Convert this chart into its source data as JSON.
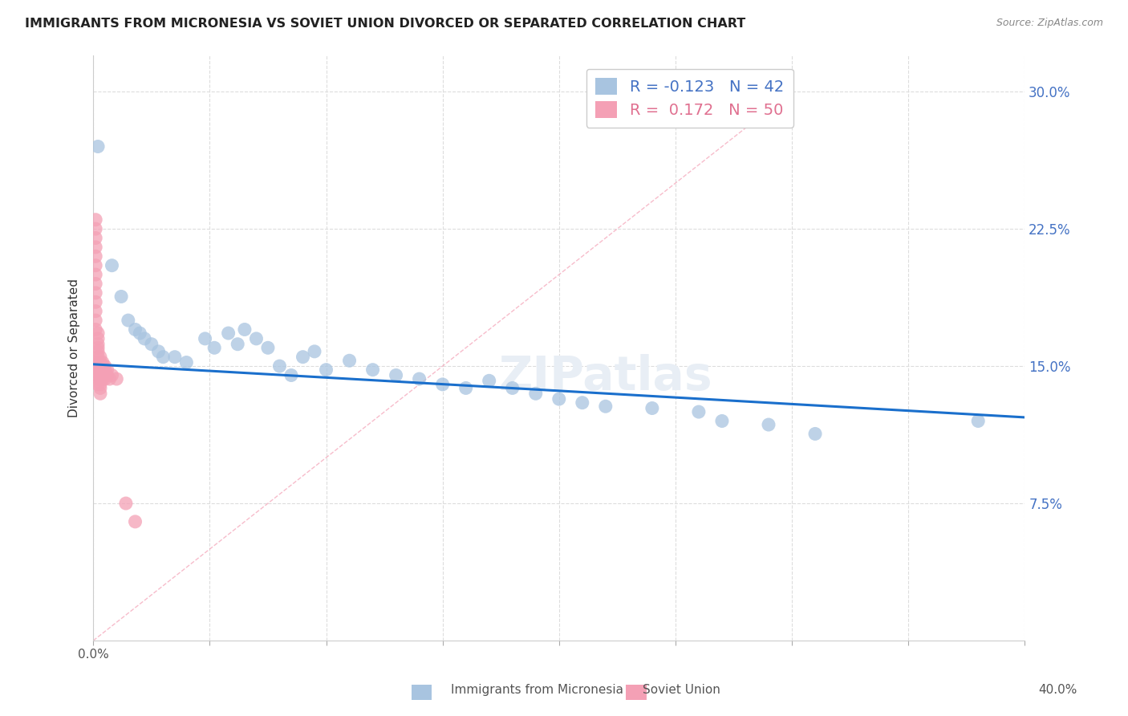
{
  "title": "IMMIGRANTS FROM MICRONESIA VS SOVIET UNION DIVORCED OR SEPARATED CORRELATION CHART",
  "source": "Source: ZipAtlas.com",
  "ylabel": "Divorced or Separated",
  "yticks": [
    "7.5%",
    "15.0%",
    "22.5%",
    "30.0%"
  ],
  "ytick_vals": [
    0.075,
    0.15,
    0.225,
    0.3
  ],
  "xtick_vals": [
    0.0,
    0.05,
    0.1,
    0.15,
    0.2,
    0.25,
    0.3,
    0.35,
    0.4
  ],
  "legend_micronesia": "Immigrants from Micronesia",
  "legend_soviet": "Soviet Union",
  "R_micronesia": -0.123,
  "N_micronesia": 42,
  "R_soviet": 0.172,
  "N_soviet": 50,
  "color_micronesia": "#a8c4e0",
  "color_soviet": "#f4a0b5",
  "trendline_color": "#1a6fcc",
  "diagonal_color": "#f4a0b5",
  "micronesia_x": [
    0.002,
    0.008,
    0.012,
    0.015,
    0.018,
    0.02,
    0.022,
    0.025,
    0.028,
    0.03,
    0.035,
    0.04,
    0.048,
    0.052,
    0.058,
    0.062,
    0.065,
    0.07,
    0.075,
    0.08,
    0.085,
    0.09,
    0.095,
    0.1,
    0.11,
    0.12,
    0.13,
    0.14,
    0.15,
    0.16,
    0.17,
    0.18,
    0.19,
    0.2,
    0.21,
    0.22,
    0.24,
    0.26,
    0.27,
    0.29,
    0.31,
    0.38
  ],
  "micronesia_y": [
    0.27,
    0.205,
    0.188,
    0.175,
    0.17,
    0.168,
    0.165,
    0.162,
    0.158,
    0.155,
    0.155,
    0.152,
    0.165,
    0.16,
    0.168,
    0.162,
    0.17,
    0.165,
    0.16,
    0.15,
    0.145,
    0.155,
    0.158,
    0.148,
    0.153,
    0.148,
    0.145,
    0.143,
    0.14,
    0.138,
    0.142,
    0.138,
    0.135,
    0.132,
    0.13,
    0.128,
    0.127,
    0.125,
    0.12,
    0.118,
    0.113,
    0.12
  ],
  "soviet_x": [
    0.001,
    0.001,
    0.001,
    0.001,
    0.001,
    0.001,
    0.001,
    0.001,
    0.001,
    0.001,
    0.001,
    0.001,
    0.001,
    0.002,
    0.002,
    0.002,
    0.002,
    0.002,
    0.002,
    0.002,
    0.002,
    0.002,
    0.002,
    0.002,
    0.002,
    0.003,
    0.003,
    0.003,
    0.003,
    0.003,
    0.003,
    0.003,
    0.003,
    0.003,
    0.004,
    0.004,
    0.004,
    0.004,
    0.004,
    0.005,
    0.005,
    0.005,
    0.005,
    0.006,
    0.006,
    0.007,
    0.008,
    0.01,
    0.014,
    0.018
  ],
  "soviet_y": [
    0.23,
    0.225,
    0.22,
    0.215,
    0.21,
    0.205,
    0.2,
    0.195,
    0.19,
    0.185,
    0.18,
    0.175,
    0.17,
    0.168,
    0.165,
    0.162,
    0.16,
    0.158,
    0.155,
    0.152,
    0.15,
    0.148,
    0.145,
    0.143,
    0.14,
    0.155,
    0.152,
    0.15,
    0.148,
    0.145,
    0.143,
    0.14,
    0.138,
    0.135,
    0.152,
    0.15,
    0.148,
    0.145,
    0.143,
    0.15,
    0.148,
    0.145,
    0.143,
    0.148,
    0.145,
    0.143,
    0.145,
    0.143,
    0.075,
    0.065
  ],
  "xlim": [
    0.0,
    0.4
  ],
  "ylim": [
    0.0,
    0.32
  ],
  "background_color": "#ffffff",
  "grid_color": "#dddddd"
}
